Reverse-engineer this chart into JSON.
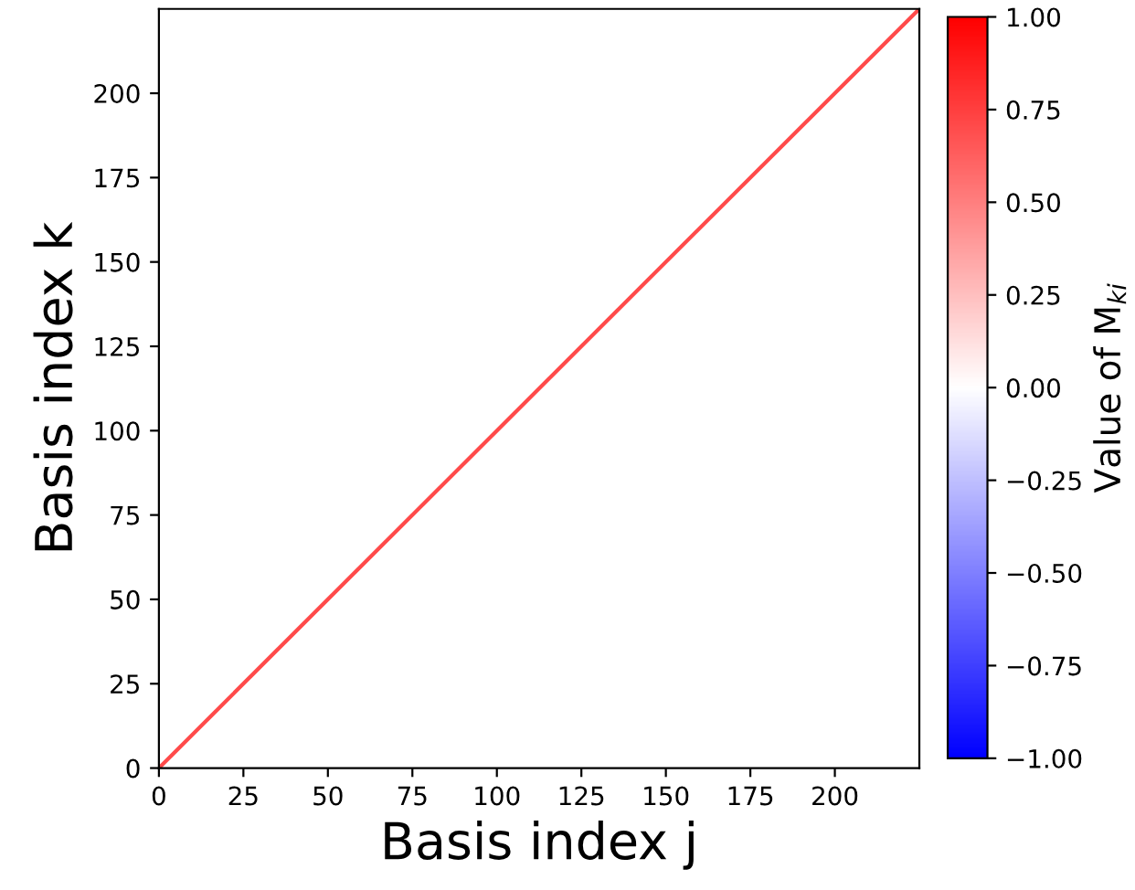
{
  "chart_data": {
    "type": "line",
    "xlabel": "Basis index j",
    "ylabel": "Basis index k",
    "clabel": "Value of M$_{ki}$",
    "series": [
      {
        "x": [
          0,
          225
        ],
        "values": [
          0,
          225
        ],
        "color": "#ff4a4a"
      }
    ],
    "xlim": [
      0,
      225
    ],
    "ylim": [
      0,
      225
    ],
    "xticks": [
      0,
      25,
      50,
      75,
      100,
      125,
      150,
      175,
      200
    ],
    "yticks": [
      0,
      25,
      50,
      75,
      100,
      125,
      150,
      175,
      200
    ],
    "clim": [
      -1,
      1
    ],
    "cticks": [
      {
        "value": 1,
        "label": "1.00"
      },
      {
        "value": 0.75,
        "label": "0.75"
      },
      {
        "value": 0.5,
        "label": "0.50"
      },
      {
        "value": 0.25,
        "label": "0.25"
      },
      {
        "value": 0,
        "label": "0.00"
      },
      {
        "value": -0.25,
        "label": "−0.25"
      },
      {
        "value": -0.5,
        "label": "−0.50"
      },
      {
        "value": -0.75,
        "label": "−0.75"
      },
      {
        "value": -1,
        "label": "−1.00"
      }
    ],
    "grid": false,
    "legend": false
  }
}
